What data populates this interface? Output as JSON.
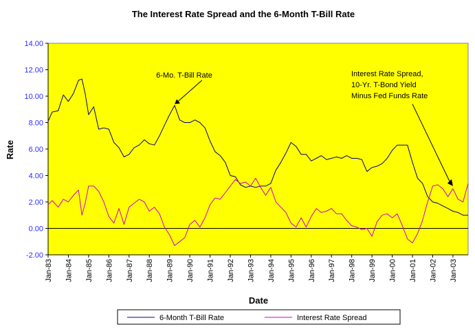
{
  "chart_data": {
    "type": "line",
    "title": "The Interest Rate Spread and the 6-Month T-Bill Rate",
    "xlabel": "Date",
    "ylabel": "Rate",
    "ylim": [
      -2,
      14
    ],
    "yticks": [
      "14.00",
      "12.00",
      "10.00",
      "8.00",
      "6.00",
      "4.00",
      "2.00",
      "0.00",
      "-2.00"
    ],
    "xlim": [
      1983.0,
      2003.75
    ],
    "categories": [
      "Jan-83",
      "Jan-84",
      "Jan-85",
      "Jan-86",
      "Jan-87",
      "Jan-88",
      "Jan-89",
      "Jan-90",
      "Jan-91",
      "Jan-92",
      "Jan-93",
      "Jan-94",
      "Jan-95",
      "Jan-96",
      "Jan-97",
      "Jan-98",
      "Jan-99",
      "Jan-00",
      "Jan-01",
      "Jan-02",
      "Jan-03"
    ],
    "plot_background": "#ffff00",
    "series": [
      {
        "name": "6-Month T-Bill Rate",
        "color": "#000080",
        "x": [
          1983.0,
          1983.2,
          1983.5,
          1983.75,
          1984.0,
          1984.25,
          1984.5,
          1984.67,
          1984.83,
          1985.0,
          1985.25,
          1985.5,
          1985.75,
          1986.0,
          1986.25,
          1986.5,
          1986.75,
          1987.0,
          1987.25,
          1987.5,
          1987.75,
          1988.0,
          1988.25,
          1988.5,
          1988.75,
          1989.0,
          1989.25,
          1989.5,
          1989.75,
          1990.0,
          1990.25,
          1990.5,
          1990.75,
          1991.0,
          1991.25,
          1991.5,
          1991.75,
          1992.0,
          1992.25,
          1992.5,
          1992.75,
          1993.0,
          1993.25,
          1993.5,
          1993.75,
          1994.0,
          1994.25,
          1994.5,
          1994.75,
          1995.0,
          1995.25,
          1995.5,
          1995.75,
          1996.0,
          1996.25,
          1996.5,
          1996.75,
          1997.0,
          1997.25,
          1997.5,
          1997.75,
          1998.0,
          1998.25,
          1998.5,
          1998.75,
          1999.0,
          1999.25,
          1999.5,
          1999.75,
          2000.0,
          2000.25,
          2000.5,
          2000.75,
          2001.0,
          2001.25,
          2001.5,
          2001.75,
          2002.0,
          2002.25,
          2002.5,
          2002.75,
          2003.0,
          2003.25,
          2003.5,
          2003.75
        ],
        "values": [
          8.1,
          8.8,
          8.9,
          10.1,
          9.6,
          10.2,
          11.2,
          11.3,
          10.2,
          8.6,
          9.2,
          7.5,
          7.6,
          7.5,
          6.5,
          6.1,
          5.4,
          5.6,
          6.1,
          6.3,
          6.7,
          6.4,
          6.3,
          7.0,
          7.8,
          8.6,
          9.3,
          8.2,
          8.0,
          8.0,
          8.2,
          8.0,
          7.6,
          6.6,
          5.8,
          5.5,
          5.0,
          4.0,
          3.9,
          3.3,
          3.1,
          3.2,
          3.1,
          3.2,
          3.2,
          3.4,
          4.4,
          5.0,
          5.7,
          6.5,
          6.2,
          5.6,
          5.6,
          5.1,
          5.3,
          5.5,
          5.2,
          5.3,
          5.4,
          5.3,
          5.5,
          5.3,
          5.3,
          5.2,
          4.3,
          4.6,
          4.7,
          4.9,
          5.3,
          5.9,
          6.3,
          6.3,
          6.3,
          5.0,
          3.8,
          3.4,
          2.4,
          2.0,
          1.9,
          1.7,
          1.5,
          1.3,
          1.2,
          1.0,
          1.0
        ]
      },
      {
        "name": "Interest Rate Spread",
        "color": "#cc00cc",
        "x": [
          1983.0,
          1983.2,
          1983.5,
          1983.75,
          1984.0,
          1984.25,
          1984.5,
          1984.67,
          1984.83,
          1985.0,
          1985.25,
          1985.5,
          1985.75,
          1986.0,
          1986.25,
          1986.5,
          1986.75,
          1987.0,
          1987.25,
          1987.5,
          1987.75,
          1988.0,
          1988.25,
          1988.5,
          1988.75,
          1989.0,
          1989.25,
          1989.5,
          1989.75,
          1990.0,
          1990.25,
          1990.5,
          1990.75,
          1991.0,
          1991.25,
          1991.5,
          1991.75,
          1992.0,
          1992.25,
          1992.5,
          1992.75,
          1993.0,
          1993.25,
          1993.5,
          1993.75,
          1994.0,
          1994.25,
          1994.5,
          1994.75,
          1995.0,
          1995.25,
          1995.5,
          1995.75,
          1996.0,
          1996.25,
          1996.5,
          1996.75,
          1997.0,
          1997.25,
          1997.5,
          1997.75,
          1998.0,
          1998.25,
          1998.5,
          1998.75,
          1999.0,
          1999.25,
          1999.5,
          1999.75,
          2000.0,
          2000.25,
          2000.5,
          2000.75,
          2001.0,
          2001.25,
          2001.5,
          2001.75,
          2002.0,
          2002.25,
          2002.5,
          2002.75,
          2003.0,
          2003.25,
          2003.5,
          2003.75
        ],
        "values": [
          1.8,
          2.1,
          1.6,
          2.2,
          2.0,
          2.5,
          2.9,
          1.0,
          1.9,
          3.2,
          3.2,
          2.8,
          2.0,
          0.9,
          0.4,
          1.5,
          0.3,
          1.6,
          1.9,
          2.2,
          2.0,
          1.3,
          1.6,
          1.1,
          0.1,
          -0.5,
          -1.3,
          -1.0,
          -0.7,
          0.3,
          0.6,
          0.1,
          0.8,
          1.8,
          2.3,
          2.2,
          2.7,
          3.2,
          3.7,
          3.4,
          3.5,
          3.2,
          3.8,
          3.1,
          2.5,
          3.1,
          2.0,
          1.6,
          1.2,
          0.4,
          0.1,
          0.8,
          0.1,
          0.9,
          1.5,
          1.2,
          1.3,
          1.5,
          1.1,
          1.1,
          0.6,
          0.2,
          0.1,
          -0.1,
          0.0,
          -0.6,
          0.5,
          1.0,
          1.1,
          0.8,
          1.1,
          0.2,
          -0.8,
          -1.1,
          -0.4,
          0.6,
          2.0,
          3.2,
          3.3,
          3.0,
          2.4,
          3.0,
          2.2,
          2.0,
          3.4
        ]
      }
    ],
    "annotations": [
      {
        "lines": [
          "6-Mo. T-Bill Rate"
        ],
        "target": [
          1989.25,
          9.4
        ],
        "arrow_from": [
          1990.6,
          11.2
        ]
      },
      {
        "lines": [
          "Interest Rate Spread,",
          "10-Yr. T-Bond Yield",
          "Minus Fed Funds Rate"
        ],
        "target": [
          2003.0,
          3.2
        ],
        "arrow_from": [
          2001.0,
          9.4
        ]
      }
    ],
    "legend": {
      "placement": "bottom",
      "entries": [
        "6-Month T-Bill Rate",
        "Interest Rate Spread"
      ]
    },
    "grid": false,
    "zero_line": true
  }
}
